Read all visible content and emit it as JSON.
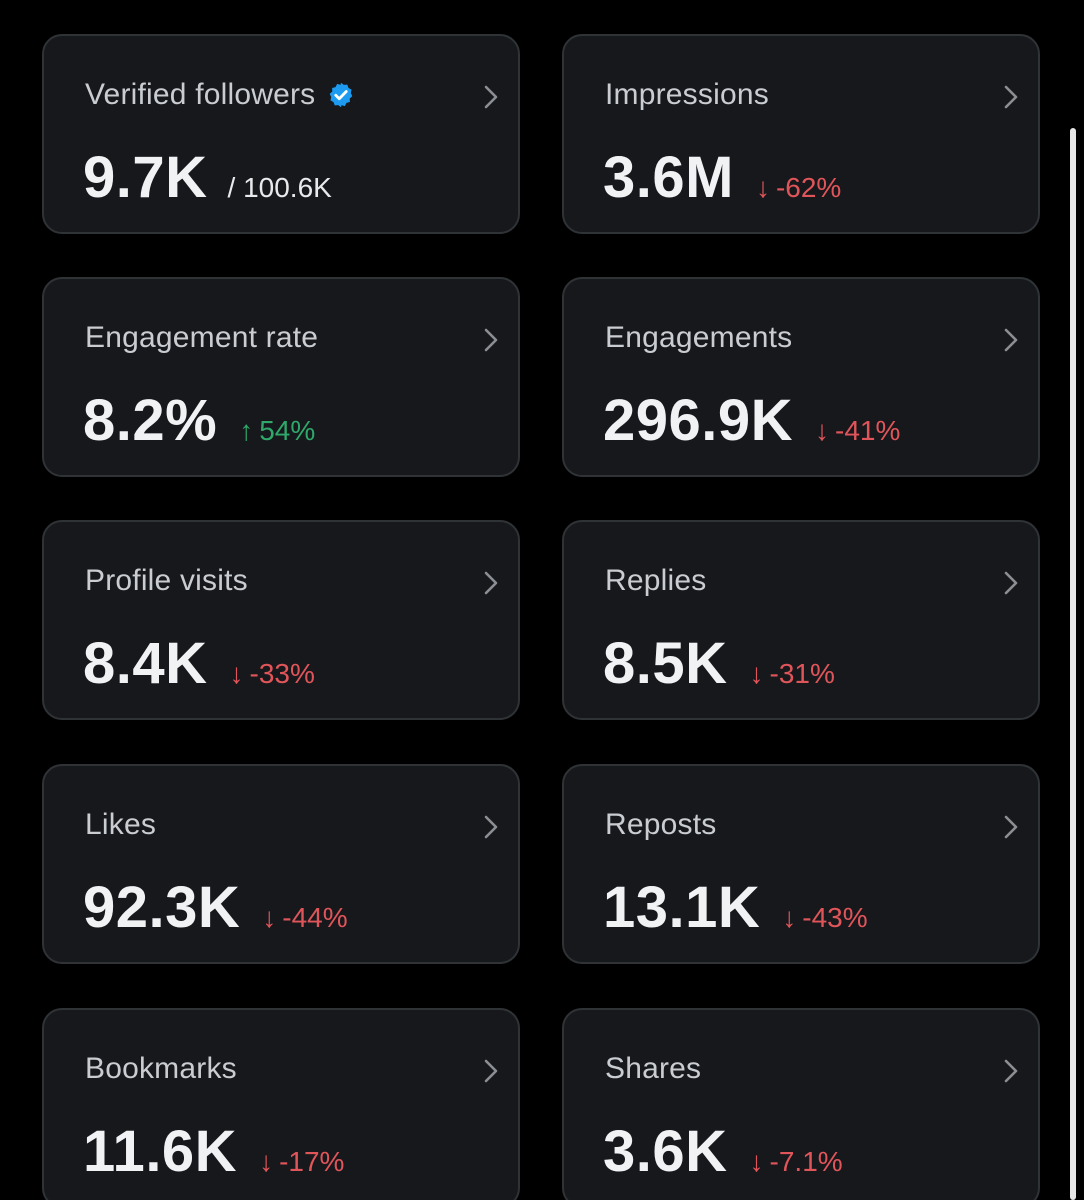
{
  "colors": {
    "background": "#000000",
    "card_background": "#16181c",
    "card_border": "#2f3336",
    "down": "#e0555a",
    "up": "#2fa86a",
    "verified_badge": "#1d9bf0"
  },
  "cards": [
    {
      "title": "Verified followers",
      "value": "9.7K",
      "sub": "/ 100.6K",
      "verified_icon": "verified-badge-icon"
    },
    {
      "title": "Impressions",
      "value": "3.6M",
      "delta_arrow": "↓",
      "delta": "-62%",
      "direction": "down"
    },
    {
      "title": "Engagement rate",
      "value": "8.2%",
      "delta_arrow": "↑",
      "delta": "54%",
      "direction": "up"
    },
    {
      "title": "Engagements",
      "value": "296.9K",
      "delta_arrow": "↓",
      "delta": "-41%",
      "direction": "down"
    },
    {
      "title": "Profile visits",
      "value": "8.4K",
      "delta_arrow": "↓",
      "delta": "-33%",
      "direction": "down"
    },
    {
      "title": "Replies",
      "value": "8.5K",
      "delta_arrow": "↓",
      "delta": "-31%",
      "direction": "down"
    },
    {
      "title": "Likes",
      "value": "92.3K",
      "delta_arrow": "↓",
      "delta": "-44%",
      "direction": "down"
    },
    {
      "title": "Reposts",
      "value": "13.1K",
      "delta_arrow": "↓",
      "delta": "-43%",
      "direction": "down"
    },
    {
      "title": "Bookmarks",
      "value": "11.6K",
      "delta_arrow": "↓",
      "delta": "-17%",
      "direction": "down"
    },
    {
      "title": "Shares",
      "value": "3.6K",
      "delta_arrow": "↓",
      "delta": "-7.1%",
      "direction": "down"
    }
  ]
}
